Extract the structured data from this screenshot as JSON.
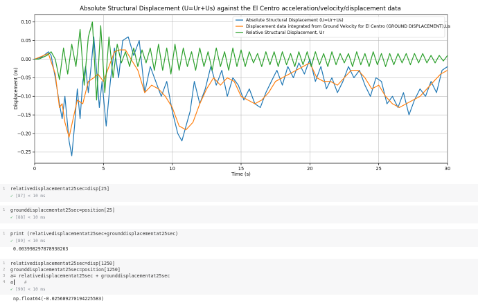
{
  "chart_data": {
    "type": "line",
    "title": "Absolute Structural Displacement (U=Ur+Us) against the El Centro acceleration/velocity/displacement data",
    "xlabel": "Time (s)",
    "ylabel": "Displacement (m)",
    "xlim": [
      0,
      30
    ],
    "ylim": [
      -0.28,
      0.12
    ],
    "xticks": [
      0,
      5,
      10,
      15,
      20,
      25,
      30
    ],
    "yticks": [
      -0.25,
      -0.2,
      -0.15,
      -0.1,
      -0.05,
      0.0,
      0.05,
      0.1
    ],
    "xtick_labels": [
      "0",
      "5",
      "10",
      "15",
      "20",
      "25",
      "30"
    ],
    "ytick_labels": [
      "−0.25",
      "−0.20",
      "−0.15",
      "−0.10",
      "−0.05",
      "0.00",
      "0.05",
      "0.10"
    ],
    "grid": true,
    "legend_position": "top-right",
    "series": [
      {
        "name": "Absolute Structural Displacement (U=Ur+Us)",
        "color": "#1f77b4",
        "x": [
          0,
          0.5,
          1,
          1.2,
          1.5,
          1.8,
          2,
          2.2,
          2.5,
          2.7,
          2.9,
          3.1,
          3.3,
          3.5,
          3.7,
          3.9,
          4.1,
          4.3,
          4.5,
          4.7,
          4.9,
          5.2,
          5.5,
          5.8,
          6.1,
          6.4,
          6.8,
          7.2,
          7.6,
          8,
          8.4,
          8.8,
          9.2,
          9.6,
          10,
          10.4,
          10.7,
          11,
          11.3,
          11.6,
          12,
          12.4,
          12.8,
          13.2,
          13.6,
          14,
          14.4,
          14.8,
          15.2,
          15.6,
          16,
          16.4,
          16.8,
          17.2,
          17.6,
          18,
          18.4,
          18.8,
          19.2,
          19.6,
          20,
          20.4,
          20.8,
          21.2,
          21.6,
          22,
          22.4,
          22.8,
          23.2,
          23.6,
          24,
          24.4,
          24.8,
          25.2,
          25.6,
          26,
          26.4,
          26.8,
          27.2,
          27.6,
          28,
          28.4,
          28.8,
          29.2,
          29.6,
          30
        ],
        "y": [
          0,
          0.005,
          0.02,
          0.01,
          -0.05,
          -0.12,
          -0.16,
          -0.1,
          -0.22,
          -0.26,
          -0.18,
          -0.08,
          -0.16,
          -0.06,
          -0.02,
          -0.09,
          -0.02,
          0.06,
          -0.03,
          -0.13,
          -0.06,
          -0.18,
          -0.06,
          0.03,
          -0.05,
          0.05,
          0.06,
          0.01,
          0.05,
          -0.09,
          -0.02,
          -0.06,
          -0.1,
          -0.06,
          -0.14,
          -0.2,
          -0.22,
          -0.18,
          -0.14,
          -0.06,
          -0.12,
          -0.08,
          -0.02,
          -0.07,
          -0.03,
          -0.1,
          -0.05,
          -0.07,
          -0.11,
          -0.08,
          -0.12,
          -0.13,
          -0.09,
          -0.06,
          -0.03,
          -0.07,
          -0.02,
          -0.05,
          -0.01,
          -0.04,
          0.0,
          -0.06,
          -0.02,
          -0.08,
          -0.05,
          -0.09,
          -0.06,
          -0.02,
          -0.05,
          -0.03,
          -0.07,
          -0.1,
          -0.05,
          -0.06,
          -0.12,
          -0.1,
          -0.13,
          -0.09,
          -0.15,
          -0.11,
          -0.08,
          -0.1,
          -0.06,
          -0.09,
          -0.03,
          -0.02
        ]
      },
      {
        "name": "Displacement data integrated from Ground Velocity for El Centro (GROUND DISPLACEMENT),Us",
        "color": "#ff7f0e",
        "x": [
          0,
          1,
          1.5,
          1.8,
          2,
          2.2,
          2.5,
          2.8,
          3.1,
          3.5,
          3.9,
          4.3,
          4.6,
          5,
          5.4,
          5.8,
          6.2,
          6.6,
          7,
          7.5,
          8,
          8.5,
          9,
          9.5,
          10,
          10.5,
          11,
          11.5,
          12,
          12.5,
          13,
          13.5,
          14,
          14.5,
          15,
          15.5,
          16,
          16.5,
          17,
          17.5,
          18,
          18.5,
          19,
          19.5,
          20,
          20.5,
          21,
          21.5,
          22,
          22.5,
          23,
          23.5,
          24,
          24.5,
          25,
          25.5,
          26,
          26.5,
          27,
          27.5,
          28,
          28.5,
          29,
          29.5,
          30
        ],
        "y": [
          0,
          0.015,
          -0.04,
          -0.13,
          -0.12,
          -0.17,
          -0.21,
          -0.16,
          -0.11,
          -0.12,
          -0.06,
          -0.05,
          -0.04,
          -0.06,
          -0.02,
          0.02,
          0.025,
          0.025,
          0.0,
          -0.03,
          -0.09,
          -0.07,
          -0.08,
          -0.1,
          -0.13,
          -0.18,
          -0.19,
          -0.17,
          -0.12,
          -0.08,
          -0.05,
          -0.07,
          -0.05,
          -0.06,
          -0.1,
          -0.11,
          -0.12,
          -0.11,
          -0.09,
          -0.06,
          -0.05,
          -0.04,
          -0.03,
          -0.02,
          -0.01,
          -0.05,
          -0.06,
          -0.06,
          -0.07,
          -0.05,
          -0.03,
          -0.03,
          -0.05,
          -0.08,
          -0.07,
          -0.1,
          -0.12,
          -0.13,
          -0.12,
          -0.11,
          -0.1,
          -0.08,
          -0.06,
          -0.04,
          -0.03
        ]
      },
      {
        "name": "Relative Structural Displacement, Ur",
        "color": "#2ca02c",
        "x": [
          0,
          0.3,
          0.6,
          0.9,
          1.2,
          1.5,
          1.8,
          2.1,
          2.4,
          2.7,
          3,
          3.3,
          3.6,
          3.9,
          4.2,
          4.5,
          4.8,
          5.1,
          5.4,
          5.7,
          6,
          6.3,
          6.6,
          6.9,
          7.2,
          7.5,
          7.8,
          8.1,
          8.4,
          8.7,
          9,
          9.3,
          9.6,
          9.9,
          10.2,
          10.5,
          10.8,
          11.1,
          11.4,
          11.7,
          12,
          12.3,
          12.6,
          12.9,
          13.2,
          13.5,
          13.8,
          14.1,
          14.4,
          14.7,
          15,
          15.3,
          15.6,
          15.9,
          16.2,
          16.5,
          16.8,
          17.1,
          17.4,
          17.7,
          18,
          18.3,
          18.6,
          18.9,
          19.2,
          19.5,
          19.8,
          20.1,
          20.4,
          20.7,
          21,
          21.3,
          21.6,
          21.9,
          22.2,
          22.5,
          22.8,
          23.1,
          23.4,
          23.7,
          24,
          24.3,
          24.6,
          24.9,
          25.2,
          25.5,
          25.8,
          26.1,
          26.4,
          26.7,
          27,
          27.3,
          27.6,
          27.9,
          28.2,
          28.5,
          28.8,
          29.1,
          29.4,
          29.7,
          30
        ],
        "y": [
          0,
          0.0,
          0.005,
          0.01,
          0.02,
          0.0,
          -0.055,
          0.03,
          -0.04,
          0.04,
          -0.02,
          0.08,
          -0.07,
          0.06,
          0.1,
          -0.11,
          0.09,
          -0.09,
          0.06,
          -0.05,
          0.04,
          -0.01,
          0.02,
          -0.02,
          0.03,
          -0.02,
          0.025,
          -0.01,
          0.03,
          -0.03,
          0.04,
          -0.03,
          0.03,
          -0.04,
          0.04,
          -0.03,
          0.03,
          -0.02,
          0.02,
          -0.03,
          0.03,
          -0.02,
          0.02,
          -0.03,
          0.03,
          -0.02,
          0.02,
          -0.03,
          0.03,
          -0.02,
          0.025,
          -0.02,
          0.02,
          -0.01,
          0.015,
          -0.02,
          0.02,
          -0.015,
          0.02,
          -0.02,
          0.02,
          -0.015,
          0.015,
          -0.02,
          0.02,
          -0.015,
          0.02,
          -0.02,
          0.02,
          -0.015,
          0.015,
          -0.02,
          0.02,
          -0.015,
          0.015,
          -0.01,
          0.015,
          -0.02,
          0.02,
          -0.015,
          0.015,
          -0.02,
          0.02,
          -0.015,
          0.015,
          -0.02,
          0.015,
          -0.015,
          0.015,
          -0.01,
          0.015,
          -0.015,
          0.015,
          -0.01,
          0.015,
          -0.01,
          0.01,
          -0.01,
          0.01,
          -0.005,
          0.01
        ]
      }
    ]
  },
  "cells": [
    {
      "line_numbers": [
        "1"
      ],
      "code": [
        "relativedisplacementat25sec=disp[25]"
      ],
      "status": "[87] < 10 ms",
      "output": ""
    },
    {
      "line_numbers": [
        "1"
      ],
      "code": [
        "grounddisplacementat25sec=position[25]"
      ],
      "status": "[88] < 10 ms",
      "output": ""
    },
    {
      "line_numbers": [
        "1"
      ],
      "code": [
        "print (relativedisplacementat25sec+grounddisplacementat25sec)"
      ],
      "status": "[89] < 10 ms",
      "output": "0.003998297878930263"
    },
    {
      "line_numbers": [
        "1",
        "2",
        "3",
        "4"
      ],
      "code": [
        "relativedisplacementat25sec=disp[1250]",
        "grounddisplacementat25sec=position[1250]",
        "a= relativedisplacementat25sec + grounddisplacementat25sec",
        "a"
      ],
      "hint": "#",
      "status": "[90] < 10 ms",
      "output": "np.float64(-0.025689270194225583)"
    }
  ]
}
